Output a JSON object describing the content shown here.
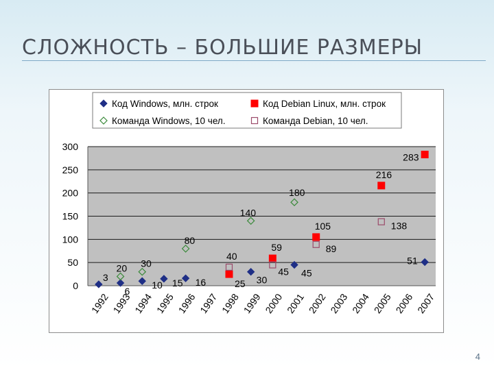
{
  "slide": {
    "title": "СЛОЖНОСТЬ – БОЛЬШИЕ РАЗМЕРЫ",
    "page_number": "4"
  },
  "colors": {
    "windows_code": "#1f2f86",
    "debian_code": "#ff0000",
    "windows_team": "#3a8a3a",
    "debian_team": "#9b4a6a",
    "plot_bg": "#c0c0c0"
  },
  "chart_data": {
    "type": "scatter",
    "x_categories": [
      "1992",
      "1993",
      "1994",
      "1995",
      "1996",
      "1997",
      "1998",
      "1999",
      "2000",
      "2001",
      "2002",
      "2003",
      "2004",
      "2005",
      "2006",
      "2007"
    ],
    "ylim": [
      0,
      300
    ],
    "yticks": [
      "0",
      "50",
      "100",
      "150",
      "200",
      "250",
      "300"
    ],
    "grid": true,
    "legend_position": "top",
    "series": [
      {
        "name": "Код Windows, млн. строк",
        "marker": "diamond-filled",
        "points": [
          {
            "x": "1992",
            "y": 3,
            "label": "3"
          },
          {
            "x": "1993",
            "y": 6,
            "label": "6"
          },
          {
            "x": "1994",
            "y": 10,
            "label": "10"
          },
          {
            "x": "1995",
            "y": 15,
            "label": "15"
          },
          {
            "x": "1996",
            "y": 16,
            "label": "16"
          },
          {
            "x": "1999",
            "y": 30,
            "label": "30"
          },
          {
            "x": "2001",
            "y": 45,
            "label": "45"
          },
          {
            "x": "2007",
            "y": 51,
            "label": "51"
          }
        ]
      },
      {
        "name": "Код Debian Linux, млн. строк",
        "marker": "square-filled",
        "points": [
          {
            "x": "1998",
            "y": 25,
            "label": "25"
          },
          {
            "x": "2000",
            "y": 59,
            "label": "59"
          },
          {
            "x": "2002",
            "y": 105,
            "label": "105"
          },
          {
            "x": "2005",
            "y": 216,
            "label": "216"
          },
          {
            "x": "2007",
            "y": 283,
            "label": "283"
          }
        ]
      },
      {
        "name": "Команда Windows, 10 чел.",
        "marker": "diamond-open",
        "points": [
          {
            "x": "1993",
            "y": 20,
            "label": "20"
          },
          {
            "x": "1994",
            "y": 30,
            "label": "30"
          },
          {
            "x": "1996",
            "y": 80,
            "label": "80"
          },
          {
            "x": "1999",
            "y": 140,
            "label": "140"
          },
          {
            "x": "2001",
            "y": 180,
            "label": "180"
          }
        ]
      },
      {
        "name": "Команда Debian, 10 чел.",
        "marker": "square-open",
        "points": [
          {
            "x": "1998",
            "y": 40,
            "label": "40"
          },
          {
            "x": "2000",
            "y": 45,
            "label": "45"
          },
          {
            "x": "2002",
            "y": 89,
            "label": "89"
          },
          {
            "x": "2005",
            "y": 138,
            "label": "138"
          }
        ]
      }
    ]
  }
}
